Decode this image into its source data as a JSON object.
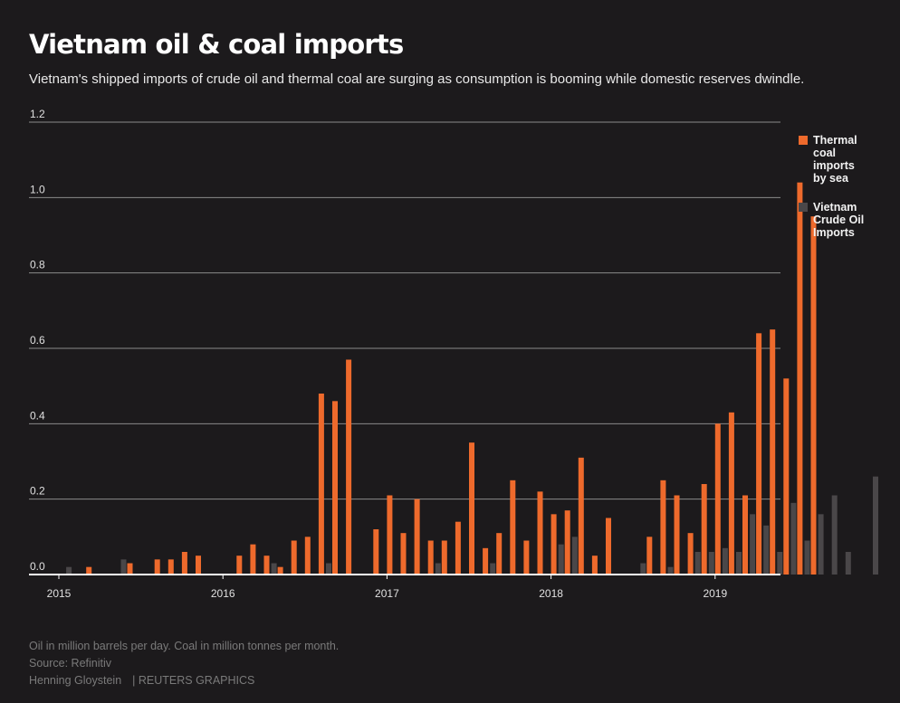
{
  "title": "Vietnam oil & coal imports",
  "subtitle": "Vietnam's shipped imports of crude oil and thermal coal are surging as consumption is booming while domestic reserves dwindle.",
  "legend": {
    "coal": "Thermal coal imports by sea",
    "oil": "Vietnam Crude Oil Imports"
  },
  "footer": {
    "note": "Oil in million barrels per day. Coal in million tonnes per month.",
    "source": "Source: Refinitiv",
    "author": "Henning Gloystein",
    "brand": "| REUTERS GRAPHICS"
  },
  "colors": {
    "coal": "#ee6a2c",
    "oil": "#4a4749",
    "background": "#1c1a1c",
    "grid": "#8a8a8a"
  },
  "chart_data": {
    "type": "bar",
    "x_start": "2015-01",
    "x_ticks": [
      "2015",
      "2016",
      "2017",
      "2018",
      "2019"
    ],
    "y_ticks": [
      "0.0",
      "0.2",
      "0.4",
      "0.6",
      "0.8",
      "1.0",
      "1.2"
    ],
    "ylim": [
      0,
      1.2
    ],
    "grid": true,
    "legend_position": "right",
    "series": [
      {
        "key": "oil",
        "name": "Vietnam Crude Oil Imports",
        "values": [
          0,
          0.02,
          0,
          0,
          0,
          0.04,
          0,
          0,
          0,
          0,
          0,
          0,
          0,
          0,
          0,
          0,
          0.03,
          0,
          0,
          0,
          0.03,
          0,
          0,
          0,
          0,
          0,
          0,
          0,
          0.03,
          0,
          0,
          0,
          0.03,
          0,
          0,
          0,
          0,
          0.08,
          0.1,
          0,
          0,
          0,
          0,
          0.03,
          0,
          0.02,
          0,
          0.06,
          0.06,
          0.07,
          0.06,
          0.16,
          0.13,
          0.06,
          0.19,
          0.09,
          0.16,
          0.21,
          0.06,
          0,
          0.26
        ]
      },
      {
        "key": "coal",
        "name": "Thermal coal imports by sea",
        "values": [
          0,
          0,
          0.02,
          0,
          0,
          0.03,
          0,
          0.04,
          0.04,
          0.06,
          0.05,
          0,
          0,
          0.05,
          0.08,
          0.05,
          0.02,
          0.09,
          0.1,
          0.48,
          0.46,
          0.57,
          0,
          0.12,
          0.21,
          0.11,
          0.2,
          0.09,
          0.09,
          0.14,
          0.35,
          0.07,
          0.11,
          0.25,
          0.09,
          0.22,
          0.16,
          0.17,
          0.31,
          0.05,
          0.15,
          0,
          0,
          0.1,
          0.25,
          0.21,
          0.11,
          0.24,
          0.4,
          0.43,
          0.21,
          0.64,
          0.65,
          0.52,
          1.04,
          0.95
        ]
      }
    ]
  }
}
